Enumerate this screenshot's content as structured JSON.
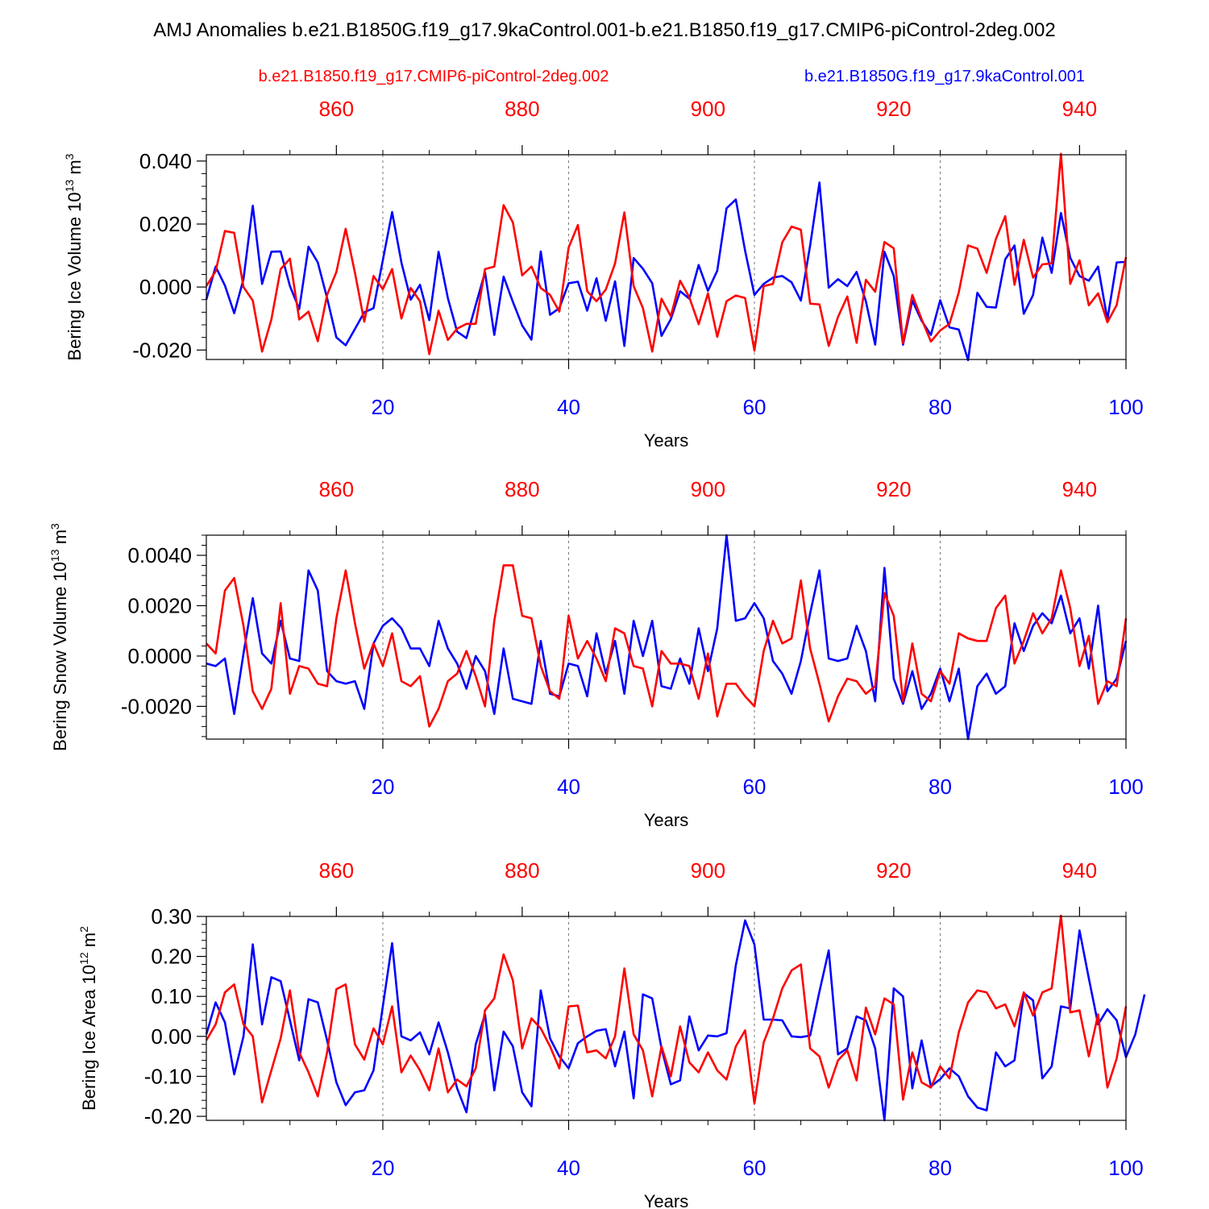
{
  "title": "AMJ Anomalies b.e21.B1850G.f19_g17.9kaControl.001-b.e21.B1850.f19_g17.CMIP6-piControl-2deg.002",
  "legend": {
    "left": {
      "label": "b.e21.B1850.f19_g17.CMIP6-piControl-2deg.002",
      "color": "#ff0000"
    },
    "right": {
      "label": "b.e21.B1850G.f19_g17.9kaControl.001",
      "color": "#0000ff"
    }
  },
  "colors": {
    "red": "#ff0000",
    "blue": "#0000ff",
    "axis": "#000000",
    "grid": "#777777"
  },
  "chart_data": [
    {
      "type": "line",
      "ylabel": "Bering Ice Volume 10",
      "ylabel_sup": "13",
      "ylabel_unit": " m",
      "ylabel_unit_sup": "3",
      "xlabel": "Years",
      "xlim": [
        1,
        100
      ],
      "top_xlim": [
        846,
        945
      ],
      "ylim": [
        -0.023,
        0.042
      ],
      "yticks": [
        -0.02,
        0.0,
        0.02,
        0.04
      ],
      "ytick_labels": [
        "-0.020",
        "0.000",
        "0.020",
        "0.040"
      ],
      "xticks": [
        20,
        40,
        60,
        80,
        100
      ],
      "xtick_labels": [
        "20",
        "40",
        "60",
        "80",
        "100"
      ],
      "top_xticks": [
        860,
        880,
        900,
        920,
        940
      ],
      "top_xtick_labels": [
        "860",
        "880",
        "900",
        "920",
        "940"
      ],
      "gridlines_x": [
        20,
        40,
        60,
        80
      ],
      "series": [
        {
          "name": "b.e21.B1850G.f19_g17.9kaControl.001",
          "color": "#0000ff",
          "values": [
            -0.004,
            0.0065,
            0.0005,
            -0.0083,
            0.0025,
            0.0258,
            0.001,
            0.0112,
            0.0113,
            0.0003,
            -0.007,
            0.0128,
            0.0078,
            -0.0035,
            -0.016,
            -0.0185,
            -0.0133,
            -0.008,
            -0.0067,
            0.0085,
            0.0238,
            0.0078,
            -0.004,
            0.0007,
            -0.0105,
            0.0112,
            -0.0035,
            -0.0142,
            -0.0162,
            -0.0057,
            0.0047,
            -0.0152,
            0.0033,
            -0.0047,
            -0.0122,
            -0.0167,
            0.0113,
            -0.0088,
            -0.0067,
            0.0012,
            0.0017,
            -0.0075,
            0.0028,
            -0.0107,
            0.0018,
            -0.0187,
            0.0092,
            0.0058,
            0.0012,
            -0.0155,
            -0.0102,
            -0.0013,
            -0.0037,
            0.007,
            -0.0012,
            0.0052,
            0.025,
            0.0278,
            0.0115,
            -0.0025,
            0.001,
            0.003,
            0.0035,
            0.0015,
            -0.0043,
            0.0132,
            0.0332,
            -0.0002,
            0.0025,
            0.0003,
            0.0048,
            -0.0045,
            -0.0183,
            0.0112,
            0.0035,
            -0.0183,
            -0.0043,
            -0.0107,
            -0.0152,
            -0.0042,
            -0.0128,
            -0.0135,
            -0.0232,
            -0.0018,
            -0.0063,
            -0.0065,
            0.0088,
            0.0132,
            -0.0085,
            -0.0025,
            0.0157,
            0.0045,
            0.0235,
            0.0093,
            0.0035,
            0.002,
            0.0065,
            -0.0103,
            0.0078,
            0.008
          ]
        },
        {
          "name": "b.e21.B1850.f19_g17.CMIP6-piControl-2deg.002",
          "color": "#ff0000",
          "values": [
            0.0003,
            0.005,
            0.0178,
            0.0172,
            0.0,
            -0.0043,
            -0.0205,
            -0.0103,
            0.0057,
            0.009,
            -0.0103,
            -0.0078,
            -0.0172,
            -0.0025,
            0.0048,
            0.0185,
            0.0045,
            -0.011,
            0.0035,
            -0.0007,
            0.0057,
            -0.01,
            -0.0003,
            -0.0045,
            -0.0213,
            -0.0075,
            -0.0168,
            -0.0132,
            -0.0117,
            -0.0117,
            0.0057,
            0.0065,
            0.026,
            0.0205,
            0.0037,
            0.0065,
            -0.0003,
            -0.0025,
            -0.0078,
            0.0125,
            0.0197,
            -0.0013,
            -0.0045,
            -0.0008,
            0.0075,
            0.0237,
            0.0003,
            -0.0067,
            -0.0205,
            -0.0037,
            -0.0093,
            0.002,
            -0.0033,
            -0.0118,
            -0.002,
            -0.0158,
            -0.0045,
            -0.0027,
            -0.0035,
            -0.0202,
            0.0003,
            0.001,
            0.0142,
            0.0192,
            0.0182,
            -0.0053,
            -0.0055,
            -0.0187,
            -0.0095,
            -0.003,
            -0.0177,
            0.0023,
            -0.0015,
            0.0143,
            0.0123,
            -0.0178,
            -0.0025,
            -0.0102,
            -0.0173,
            -0.0138,
            -0.0117,
            -0.0017,
            0.0132,
            0.0122,
            0.0045,
            0.0153,
            0.0225,
            0.0007,
            0.015,
            0.003,
            0.0072,
            0.0075,
            0.0423,
            0.001,
            0.0085,
            -0.0058,
            -0.002,
            -0.0112,
            -0.0057,
            0.0095
          ]
        }
      ]
    },
    {
      "type": "line",
      "ylabel": "Bering Snow Volume 10",
      "ylabel_sup": "13",
      "ylabel_unit": " m",
      "ylabel_unit_sup": "3",
      "xlabel": "Years",
      "xlim": [
        1,
        100
      ],
      "top_xlim": [
        846,
        945
      ],
      "ylim": [
        -0.0033,
        0.0048
      ],
      "yticks": [
        -0.002,
        0.0,
        0.002,
        0.004
      ],
      "ytick_labels": [
        "-0.0020",
        "0.0000",
        "0.0020",
        "0.0040"
      ],
      "xticks": [
        20,
        40,
        60,
        80,
        100
      ],
      "xtick_labels": [
        "20",
        "40",
        "60",
        "80",
        "100"
      ],
      "top_xticks": [
        860,
        880,
        900,
        920,
        940
      ],
      "top_xtick_labels": [
        "860",
        "880",
        "900",
        "920",
        "940"
      ],
      "gridlines_x": [
        20,
        40,
        60,
        80
      ],
      "series": [
        {
          "name": "b.e21.B1850G.f19_g17.9kaControl.001",
          "color": "#0000ff",
          "values": [
            -0.0003,
            -0.0004,
            -0.0001,
            -0.0023,
            0.0001,
            0.0023,
            0.0001,
            -0.0003,
            0.0014,
            -0.0001,
            -0.0002,
            0.0034,
            0.0026,
            -0.0006,
            -0.001,
            -0.0011,
            -0.001,
            -0.0021,
            0.0005,
            0.0012,
            0.0015,
            0.0011,
            0.0003,
            0.0003,
            -0.0004,
            0.0014,
            0.0003,
            -0.0003,
            -0.0013,
            0.0,
            -0.0006,
            -0.0023,
            0.0003,
            -0.0017,
            -0.0018,
            -0.0019,
            0.0006,
            -0.0015,
            -0.0016,
            -0.0003,
            -0.0004,
            -0.0016,
            0.0009,
            -0.0007,
            0.0006,
            -0.0015,
            0.0014,
            0.0,
            0.0014,
            -0.0012,
            -0.0013,
            -0.0001,
            -0.0011,
            0.0011,
            -0.0006,
            0.0011,
            0.0048,
            0.0014,
            0.0015,
            0.0021,
            0.0015,
            -0.0002,
            -0.0007,
            -0.0015,
            -0.0002,
            0.0017,
            0.0034,
            -0.0001,
            -0.0002,
            -0.0001,
            0.0012,
            0.0002,
            -0.0018,
            0.0035,
            -0.0009,
            -0.0019,
            -0.0006,
            -0.0021,
            -0.0015,
            -0.0005,
            -0.0018,
            -0.0005,
            -0.0033,
            -0.0012,
            -0.0007,
            -0.0015,
            -0.0012,
            0.0013,
            0.0002,
            0.0012,
            0.0017,
            0.0013,
            0.0024,
            0.0009,
            0.0015,
            -0.0005,
            0.002,
            -0.0014,
            -0.0009,
            0.0006
          ]
        },
        {
          "name": "b.e21.B1850.f19_g17.CMIP6-piControl-2deg.002",
          "color": "#ff0000",
          "values": [
            0.0005,
            0.0001,
            0.0026,
            0.0031,
            0.0012,
            -0.0014,
            -0.0021,
            -0.0013,
            0.0021,
            -0.0015,
            -0.0004,
            -0.0005,
            -0.0011,
            -0.0012,
            0.0015,
            0.0034,
            0.0013,
            -0.0005,
            0.0005,
            -0.0004,
            0.0009,
            -0.001,
            -0.0012,
            -0.0008,
            -0.0028,
            -0.0021,
            -0.001,
            -0.0007,
            0.0002,
            -0.0008,
            -0.002,
            0.0014,
            0.0036,
            0.0036,
            0.0016,
            0.0015,
            -0.0004,
            -0.0014,
            -0.0017,
            0.0016,
            -0.0001,
            0.0006,
            -0.0001,
            -0.001,
            0.0011,
            0.0009,
            -0.0004,
            -0.0005,
            -0.002,
            0.0002,
            -0.0003,
            -0.0003,
            -0.0004,
            -0.0017,
            0.0001,
            -0.0024,
            -0.0011,
            -0.0011,
            -0.0016,
            -0.002,
            0.0002,
            0.0014,
            0.0005,
            0.0007,
            0.003,
            0.0003,
            -0.0011,
            -0.0026,
            -0.0016,
            -0.0009,
            -0.001,
            -0.0015,
            -0.0012,
            0.0025,
            0.0016,
            -0.0018,
            0.0005,
            -0.0015,
            -0.0018,
            -0.0006,
            -0.0011,
            0.0009,
            0.0007,
            0.0006,
            0.0006,
            0.0019,
            0.0024,
            -0.0003,
            0.0006,
            0.0017,
            0.0009,
            0.0015,
            0.0034,
            0.0019,
            -0.0004,
            0.0008,
            -0.0019,
            -0.001,
            -0.0012,
            0.0015
          ]
        }
      ]
    },
    {
      "type": "line",
      "ylabel": "Bering Ice Area 10",
      "ylabel_sup": "12",
      "ylabel_unit": " m",
      "ylabel_unit_sup": "2",
      "xlabel": "Years",
      "xlim": [
        1,
        100
      ],
      "top_xlim": [
        846,
        945
      ],
      "ylim": [
        -0.21,
        0.3
      ],
      "yticks": [
        -0.2,
        -0.1,
        0.0,
        0.1,
        0.2,
        0.3
      ],
      "ytick_labels": [
        "-0.20",
        "-0.10",
        "0.00",
        "0.10",
        "0.20",
        "0.30"
      ],
      "xticks": [
        20,
        40,
        60,
        80,
        100
      ],
      "xtick_labels": [
        "20",
        "40",
        "60",
        "80",
        "100"
      ],
      "top_xticks": [
        860,
        880,
        900,
        920,
        940
      ],
      "top_xtick_labels": [
        "860",
        "880",
        "900",
        "920",
        "940"
      ],
      "gridlines_x": [
        20,
        40,
        60,
        80
      ],
      "series": [
        {
          "name": "b.e21.B1850G.f19_g17.9kaControl.001",
          "color": "#0000ff",
          "values": [
            0.005,
            0.085,
            0.035,
            -0.095,
            0.0,
            0.23,
            0.03,
            0.148,
            0.138,
            0.04,
            -0.06,
            0.093,
            0.085,
            -0.01,
            -0.115,
            -0.172,
            -0.14,
            -0.135,
            -0.085,
            0.075,
            0.233,
            0.0,
            -0.01,
            0.01,
            -0.045,
            0.035,
            -0.04,
            -0.13,
            -0.19,
            -0.02,
            0.055,
            -0.135,
            0.012,
            -0.025,
            -0.14,
            -0.175,
            0.115,
            -0.005,
            -0.05,
            -0.08,
            -0.017,
            0.0,
            0.014,
            0.018,
            -0.075,
            0.012,
            -0.155,
            0.105,
            0.095,
            -0.03,
            -0.12,
            -0.11,
            0.05,
            -0.035,
            0.002,
            0.0,
            0.008,
            0.178,
            0.29,
            0.23,
            0.042,
            0.042,
            0.04,
            0.0,
            -0.002,
            0.002,
            0.112,
            0.215,
            -0.045,
            -0.03,
            0.05,
            0.04,
            -0.03,
            -0.21,
            0.12,
            0.1,
            -0.13,
            -0.01,
            -0.125,
            -0.107,
            -0.08,
            -0.1,
            -0.15,
            -0.178,
            -0.185,
            -0.04,
            -0.075,
            -0.06,
            0.108,
            0.09,
            -0.105,
            -0.075,
            0.075,
            0.07,
            0.265,
            0.145,
            0.03,
            0.068,
            0.04,
            -0.052,
            0.005,
            0.105
          ]
        },
        {
          "name": "b.e21.B1850.f19_g17.CMIP6-piControl-2deg.002",
          "color": "#ff0000",
          "values": [
            -0.01,
            0.03,
            0.11,
            0.13,
            0.03,
            0.0,
            -0.165,
            -0.085,
            -0.005,
            0.115,
            -0.04,
            -0.09,
            -0.15,
            -0.04,
            0.118,
            0.13,
            -0.02,
            -0.058,
            0.02,
            -0.02,
            0.075,
            -0.09,
            -0.048,
            -0.085,
            -0.135,
            -0.03,
            -0.14,
            -0.108,
            -0.125,
            -0.08,
            0.065,
            0.095,
            0.205,
            0.14,
            -0.03,
            0.045,
            0.02,
            -0.025,
            -0.08,
            0.075,
            0.077,
            -0.04,
            -0.035,
            -0.055,
            0.0,
            0.17,
            0.005,
            -0.035,
            -0.15,
            -0.025,
            -0.1,
            0.025,
            -0.065,
            -0.09,
            -0.04,
            -0.085,
            -0.108,
            -0.025,
            0.015,
            -0.168,
            -0.015,
            0.045,
            0.12,
            0.165,
            0.18,
            -0.03,
            -0.05,
            -0.128,
            -0.06,
            -0.035,
            -0.11,
            0.072,
            0.005,
            0.095,
            0.08,
            -0.158,
            -0.04,
            -0.115,
            -0.128,
            -0.075,
            -0.105,
            0.01,
            0.085,
            0.115,
            0.11,
            0.07,
            0.08,
            0.025,
            0.11,
            0.052,
            0.11,
            0.12,
            0.302,
            0.06,
            0.065,
            -0.05,
            0.055,
            -0.128,
            -0.055,
            0.075
          ]
        }
      ]
    }
  ]
}
